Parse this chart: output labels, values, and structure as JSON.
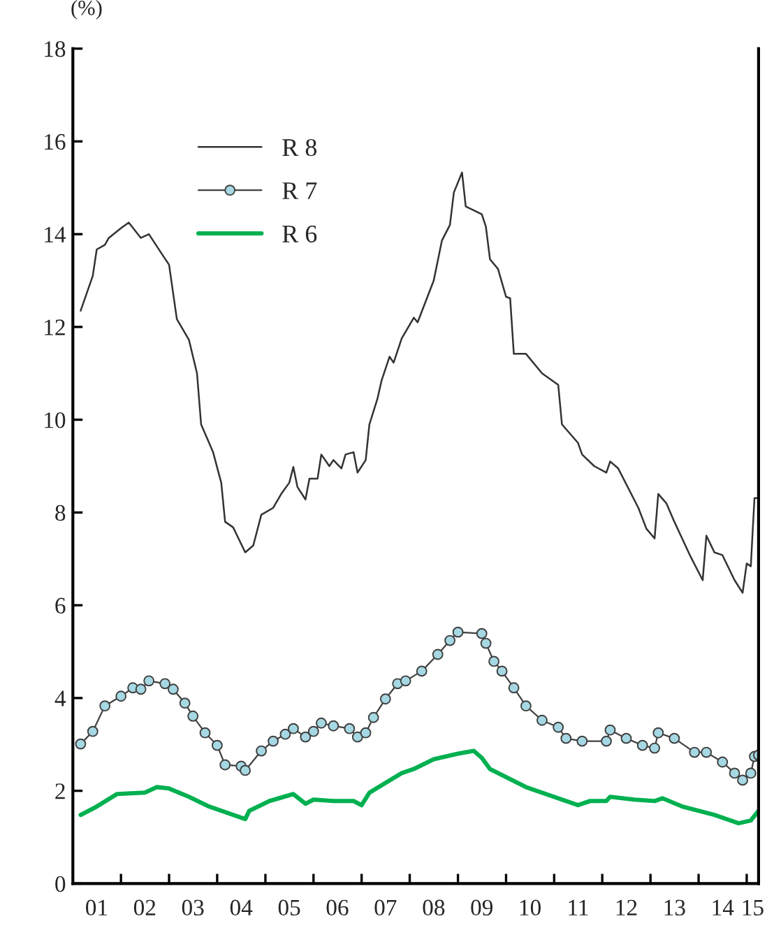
{
  "chart_data": {
    "type": "line",
    "ylabel": "(%)",
    "xlim": [
      "2001-01-01",
      "2015-04-01"
    ],
    "ylim": [
      0,
      18
    ],
    "yticks": [
      0,
      2,
      4,
      6,
      8,
      10,
      12,
      14,
      16,
      18
    ],
    "xticks": [
      {
        "value": "2002-01-01",
        "label": null
      },
      {
        "value": "2003-01-01",
        "label": null
      },
      {
        "value": "2004-01-01",
        "label": null
      },
      {
        "value": "2005-01-01",
        "label": null
      },
      {
        "value": "2006-01-01",
        "label": null
      },
      {
        "value": "2007-01-01",
        "label": null
      },
      {
        "value": "2008-01-01",
        "label": null
      },
      {
        "value": "2009-01-01",
        "label": null
      },
      {
        "value": "2010-01-01",
        "label": null
      },
      {
        "value": "2011-01-01",
        "label": null
      },
      {
        "value": "2012-01-01",
        "label": null
      },
      {
        "value": "2013-01-01",
        "label": null
      },
      {
        "value": "2014-01-01",
        "label": null
      },
      {
        "value": "2015-01-01",
        "label": null
      },
      {
        "value": "2001-07-01",
        "label": "01"
      },
      {
        "value": "2002-07-01",
        "label": "02"
      },
      {
        "value": "2003-07-01",
        "label": "03"
      },
      {
        "value": "2004-07-01",
        "label": "04"
      },
      {
        "value": "2005-07-01",
        "label": "05"
      },
      {
        "value": "2006-07-01",
        "label": "06"
      },
      {
        "value": "2007-07-01",
        "label": "07"
      },
      {
        "value": "2008-07-01",
        "label": "08"
      },
      {
        "value": "2009-07-01",
        "label": "09"
      },
      {
        "value": "2010-07-01",
        "label": "10"
      },
      {
        "value": "2011-07-01",
        "label": "11"
      },
      {
        "value": "2012-07-01",
        "label": "12"
      },
      {
        "value": "2013-07-01",
        "label": "13"
      },
      {
        "value": "2014-07-01",
        "label": "14"
      },
      {
        "value": "2015-02-15",
        "label": "15"
      }
    ],
    "grid": false,
    "legend": "top left",
    "series": [
      {
        "name": "R 8",
        "color": "#333333",
        "marker": "none",
        "x": [
          "2001-03",
          "2001-06",
          "2001-07",
          "2001-09",
          "2001-10",
          "2002-01",
          "2002-03",
          "2002-06",
          "2002-08",
          "2002-11",
          "2003-01",
          "2003-03",
          "2003-06",
          "2003-08",
          "2003-09",
          "2003-12",
          "2004-02",
          "2004-03",
          "2004-05",
          "2004-08",
          "2004-10",
          "2004-12",
          "2005-03",
          "2005-05",
          "2005-07",
          "2005-08",
          "2005-09",
          "2005-11",
          "2005-12",
          "2006-02",
          "2006-03",
          "2006-05",
          "2006-06",
          "2006-08",
          "2006-09",
          "2006-11",
          "2006-12",
          "2007-02",
          "2007-03",
          "2007-05",
          "2007-06",
          "2007-08",
          "2007-09",
          "2007-11",
          "2008-02",
          "2008-03",
          "2008-07",
          "2008-09",
          "2008-11",
          "2008-12",
          "2009-02",
          "2009-03",
          "2009-07",
          "2009-08",
          "2009-09",
          "2009-11",
          "2010-01",
          "2010-02",
          "2010-03",
          "2010-06",
          "2010-10",
          "2011-02",
          "2011-03",
          "2011-07",
          "2011-08",
          "2011-11",
          "2012-02",
          "2012-03",
          "2012-05",
          "2012-10",
          "2012-12",
          "2013-02",
          "2013-03",
          "2013-05",
          "2013-07",
          "2013-11",
          "2014-02",
          "2014-03",
          "2014-05",
          "2014-07",
          "2014-10",
          "2014-12",
          "2015-01",
          "2015-02",
          "2015-03",
          "2015-04"
        ],
        "values": [
          12.35,
          13.1,
          13.67,
          13.77,
          13.92,
          14.13,
          14.25,
          13.92,
          14.0,
          13.6,
          13.34,
          12.17,
          11.72,
          11.0,
          9.9,
          9.3,
          8.64,
          7.8,
          7.68,
          7.14,
          7.29,
          7.95,
          8.1,
          8.4,
          8.64,
          8.98,
          8.55,
          8.28,
          8.73,
          8.73,
          9.25,
          9.0,
          9.13,
          8.95,
          9.25,
          9.3,
          8.86,
          9.13,
          9.9,
          10.45,
          10.84,
          11.36,
          11.23,
          11.75,
          12.2,
          12.1,
          13.0,
          13.86,
          14.2,
          14.9,
          15.33,
          14.6,
          14.43,
          14.16,
          13.46,
          13.25,
          12.65,
          12.62,
          11.42,
          11.42,
          11.0,
          10.75,
          9.9,
          9.5,
          9.25,
          9.0,
          8.86,
          9.1,
          8.95,
          8.1,
          7.65,
          7.44,
          8.4,
          8.2,
          7.8,
          7.05,
          6.54,
          7.5,
          7.14,
          7.08,
          6.54,
          6.27,
          6.9,
          6.84,
          8.31,
          8.31
        ]
      },
      {
        "name": "R 7",
        "color": "#a6d8e3",
        "marker": "circle",
        "x": [
          "2001-03",
          "2001-06",
          "2001-09",
          "2002-01",
          "2002-04",
          "2002-06",
          "2002-08",
          "2002-12",
          "2003-02",
          "2003-05",
          "2003-07",
          "2003-10",
          "2004-01",
          "2004-03",
          "2004-07",
          "2004-08",
          "2004-12",
          "2005-03",
          "2005-06",
          "2005-08",
          "2005-11",
          "2006-01",
          "2006-03",
          "2006-06",
          "2006-10",
          "2006-12",
          "2007-02",
          "2007-04",
          "2007-07",
          "2007-10",
          "2007-12",
          "2008-04",
          "2008-08",
          "2008-11",
          "2009-01",
          "2009-07",
          "2009-08",
          "2009-10",
          "2009-12",
          "2010-03",
          "2010-06",
          "2010-10",
          "2011-02",
          "2011-04",
          "2011-08",
          "2012-02",
          "2012-03",
          "2012-07",
          "2012-11",
          "2013-02",
          "2013-03",
          "2013-07",
          "2013-12",
          "2014-03",
          "2014-07",
          "2014-10",
          "2014-12",
          "2015-02",
          "2015-03",
          "2015-04"
        ],
        "values": [
          3.01,
          3.28,
          3.83,
          4.04,
          4.22,
          4.19,
          4.37,
          4.31,
          4.19,
          3.89,
          3.61,
          3.25,
          2.98,
          2.56,
          2.53,
          2.44,
          2.86,
          3.07,
          3.22,
          3.34,
          3.16,
          3.28,
          3.46,
          3.4,
          3.34,
          3.16,
          3.25,
          3.58,
          3.98,
          4.31,
          4.37,
          4.58,
          4.94,
          5.24,
          5.42,
          5.39,
          5.18,
          4.79,
          4.58,
          4.22,
          3.83,
          3.52,
          3.37,
          3.13,
          3.07,
          3.07,
          3.31,
          3.13,
          2.98,
          2.92,
          3.25,
          3.13,
          2.83,
          2.83,
          2.62,
          2.38,
          2.23,
          2.38,
          2.74,
          2.77
        ]
      },
      {
        "name": "R 6",
        "color": "#00b050",
        "marker": "none",
        "x": [
          "2001-03",
          "2001-07",
          "2001-12",
          "2002-07",
          "2002-10",
          "2003-01",
          "2003-06",
          "2003-11",
          "2004-04",
          "2004-08",
          "2004-09",
          "2005-02",
          "2005-08",
          "2005-11",
          "2006-01",
          "2006-06",
          "2006-11",
          "2007-01",
          "2007-03",
          "2007-07",
          "2007-11",
          "2008-02",
          "2008-07",
          "2009-01",
          "2009-05",
          "2009-07",
          "2009-09",
          "2010-06",
          "2011-01",
          "2011-07",
          "2011-10",
          "2012-02",
          "2012-03",
          "2012-09",
          "2013-02",
          "2013-04",
          "2013-09",
          "2014-05",
          "2014-11",
          "2015-02",
          "2015-04"
        ],
        "values": [
          1.48,
          1.66,
          1.93,
          1.96,
          2.08,
          2.05,
          1.87,
          1.66,
          1.51,
          1.39,
          1.57,
          1.78,
          1.93,
          1.72,
          1.81,
          1.78,
          1.78,
          1.69,
          1.96,
          2.17,
          2.38,
          2.47,
          2.68,
          2.8,
          2.86,
          2.71,
          2.47,
          2.08,
          1.87,
          1.69,
          1.78,
          1.78,
          1.87,
          1.81,
          1.78,
          1.84,
          1.66,
          1.48,
          1.3,
          1.36,
          1.57
        ]
      }
    ]
  }
}
